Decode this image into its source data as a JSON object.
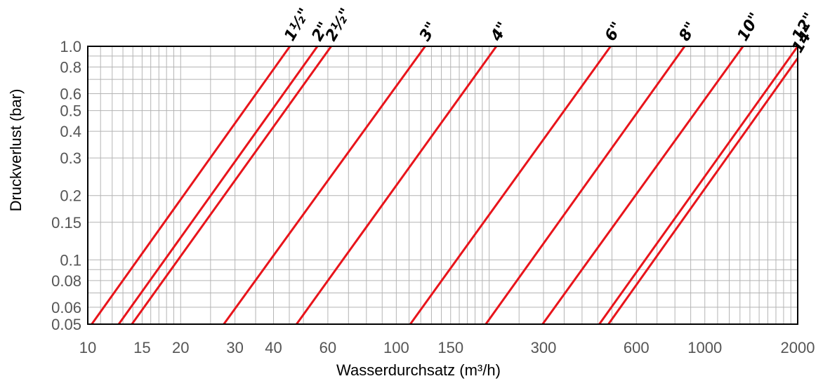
{
  "chart_data": {
    "type": "line",
    "title": "",
    "xlabel": "Wasserdurchsatz (m³/h)",
    "ylabel": "Druckverlust (bar)",
    "x_scale": "log",
    "y_scale": "log",
    "xlim": [
      10,
      2000
    ],
    "ylim": [
      0.05,
      1.0
    ],
    "grid": true,
    "x_ticks": [
      {
        "value": 10,
        "label": "10"
      },
      {
        "value": 15,
        "label": "15"
      },
      {
        "value": 20,
        "label": "20"
      },
      {
        "value": 30,
        "label": "30"
      },
      {
        "value": 40,
        "label": "40"
      },
      {
        "value": 60,
        "label": "60"
      },
      {
        "value": 100,
        "label": "100"
      },
      {
        "value": 150,
        "label": "150"
      },
      {
        "value": 300,
        "label": "300"
      },
      {
        "value": 600,
        "label": "600"
      },
      {
        "value": 1000,
        "label": "1000"
      },
      {
        "value": 2000,
        "label": "2000"
      }
    ],
    "y_ticks": [
      {
        "value": 1.0,
        "label": "1.0"
      },
      {
        "value": 0.8,
        "label": "0.8"
      },
      {
        "value": 0.6,
        "label": "0.6"
      },
      {
        "value": 0.5,
        "label": "0.5"
      },
      {
        "value": 0.4,
        "label": "0.4"
      },
      {
        "value": 0.3,
        "label": "0.3"
      },
      {
        "value": 0.2,
        "label": "0.2"
      },
      {
        "value": 0.15,
        "label": "0.15"
      },
      {
        "value": 0.1,
        "label": "0.1"
      },
      {
        "value": 0.08,
        "label": "0.08"
      },
      {
        "value": 0.06,
        "label": "0.06"
      },
      {
        "value": 0.05,
        "label": "0.05"
      }
    ],
    "x_grid": [
      10,
      11,
      12,
      13,
      14,
      15,
      16,
      17,
      18,
      19,
      20,
      25,
      30,
      35,
      40,
      45,
      50,
      60,
      70,
      80,
      90,
      100,
      110,
      120,
      130,
      140,
      150,
      160,
      170,
      180,
      190,
      200,
      250,
      300,
      350,
      400,
      450,
      500,
      600,
      700,
      800,
      900,
      1000,
      1100,
      1200,
      1300,
      1400,
      1500,
      1600,
      1700,
      1800,
      1900,
      2000
    ],
    "y_grid": [
      0.05,
      0.06,
      0.07,
      0.08,
      0.09,
      0.1,
      0.15,
      0.2,
      0.3,
      0.4,
      0.5,
      0.6,
      0.7,
      0.8,
      0.9,
      1.0
    ],
    "series": [
      {
        "name": "1½\"",
        "points": [
          [
            10.3,
            0.05
          ],
          [
            45.2,
            1.0
          ]
        ]
      },
      {
        "name": "2\"",
        "points": [
          [
            12.6,
            0.05
          ],
          [
            55.5,
            1.0
          ]
        ]
      },
      {
        "name": "2½\"",
        "points": [
          [
            13.9,
            0.05
          ],
          [
            61.5,
            1.0
          ]
        ]
      },
      {
        "name": "3\"",
        "points": [
          [
            27.6,
            0.05
          ],
          [
            124,
            1.0
          ]
        ]
      },
      {
        "name": "4\"",
        "points": [
          [
            47.5,
            0.05
          ],
          [
            211,
            1.0
          ]
        ]
      },
      {
        "name": "6\"",
        "points": [
          [
            111,
            0.05
          ],
          [
            495,
            1.0
          ]
        ]
      },
      {
        "name": "8\"",
        "points": [
          [
            195,
            0.05
          ],
          [
            860,
            1.0
          ]
        ]
      },
      {
        "name": "10\"",
        "points": [
          [
            298,
            0.05
          ],
          [
            1330,
            1.0
          ]
        ]
      },
      {
        "name": "12\"",
        "points": [
          [
            455,
            0.05
          ],
          [
            2000,
            1.0
          ]
        ]
      },
      {
        "name": "14\"",
        "points": [
          [
            487,
            0.05
          ],
          [
            2000,
            0.88
          ]
        ]
      }
    ],
    "line_color": "#e8141b",
    "grid_color": "#b4b4b4"
  }
}
